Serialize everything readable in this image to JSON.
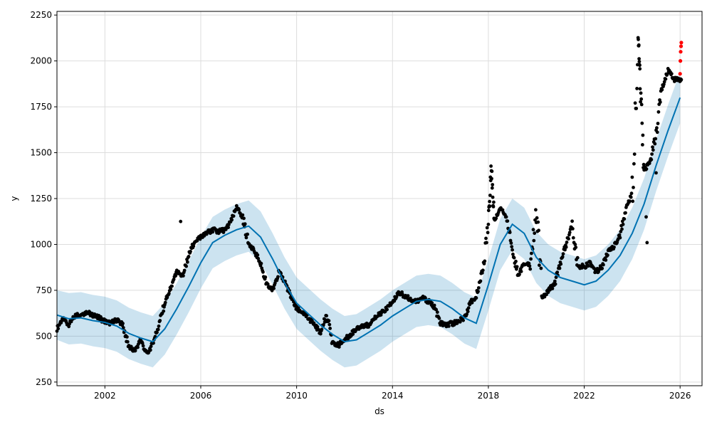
{
  "chart_data": {
    "type": "scatter",
    "title": "",
    "xlabel": "ds",
    "ylabel": "y",
    "x_is_date": true,
    "xlim": [
      "2000-01-01",
      "2026-12-01"
    ],
    "ylim": [
      230,
      2270
    ],
    "xticks": [
      "2002",
      "2006",
      "2010",
      "2014",
      "2018",
      "2022",
      "2026"
    ],
    "yticks": [
      "250",
      "500",
      "750",
      "1000",
      "1250",
      "1500",
      "1750",
      "2000",
      "2250"
    ],
    "grid": true,
    "colors": {
      "forecast_line": "#0072B2",
      "uncertainty_band": "#0072B2",
      "observed_points": "#000000",
      "highlight_points": "#ff0000",
      "grid": "#dddddd",
      "axes": "#000000"
    },
    "forecast": {
      "x": [
        "2000-01-01",
        "2000-07-01",
        "2001-01-01",
        "2001-07-01",
        "2002-01-01",
        "2002-07-01",
        "2003-01-01",
        "2003-07-01",
        "2004-01-01",
        "2004-07-01",
        "2005-01-01",
        "2005-07-01",
        "2006-01-01",
        "2006-07-01",
        "2007-01-01",
        "2007-07-01",
        "2008-01-01",
        "2008-07-01",
        "2009-01-01",
        "2009-07-01",
        "2010-01-01",
        "2010-07-01",
        "2011-01-01",
        "2011-07-01",
        "2012-01-01",
        "2012-07-01",
        "2013-01-01",
        "2013-07-01",
        "2014-01-01",
        "2014-07-01",
        "2015-01-01",
        "2015-07-01",
        "2016-01-01",
        "2016-07-01",
        "2017-01-01",
        "2017-07-01",
        "2018-01-01",
        "2018-07-01",
        "2019-01-01",
        "2019-07-01",
        "2020-01-01",
        "2020-07-01",
        "2021-01-01",
        "2021-07-01",
        "2022-01-01",
        "2022-07-01",
        "2023-01-01",
        "2023-07-01",
        "2024-01-01",
        "2024-07-01",
        "2025-01-01",
        "2025-07-01",
        "2026-01-01"
      ],
      "yhat": [
        615,
        595,
        600,
        585,
        575,
        555,
        515,
        490,
        470,
        540,
        650,
        770,
        900,
        1010,
        1050,
        1080,
        1100,
        1040,
        920,
        790,
        680,
        620,
        560,
        510,
        470,
        480,
        520,
        560,
        610,
        650,
        690,
        700,
        690,
        650,
        600,
        570,
        780,
        1000,
        1110,
        1060,
        930,
        860,
        820,
        800,
        780,
        800,
        860,
        940,
        1060,
        1220,
        1430,
        1620,
        1800
      ]
    },
    "band": {
      "x": [
        "2000-01-01",
        "2000-07-01",
        "2001-01-01",
        "2001-07-01",
        "2002-01-01",
        "2002-07-01",
        "2003-01-01",
        "2003-07-01",
        "2004-01-01",
        "2004-07-01",
        "2005-01-01",
        "2005-07-01",
        "2006-01-01",
        "2006-07-01",
        "2007-01-01",
        "2007-07-01",
        "2008-01-01",
        "2008-07-01",
        "2009-01-01",
        "2009-07-01",
        "2010-01-01",
        "2010-07-01",
        "2011-01-01",
        "2011-07-01",
        "2012-01-01",
        "2012-07-01",
        "2013-01-01",
        "2013-07-01",
        "2014-01-01",
        "2014-07-01",
        "2015-01-01",
        "2015-07-01",
        "2016-01-01",
        "2016-07-01",
        "2017-01-01",
        "2017-07-01",
        "2018-01-01",
        "2018-07-01",
        "2019-01-01",
        "2019-07-01",
        "2020-01-01",
        "2020-07-01",
        "2021-01-01",
        "2021-07-01",
        "2022-01-01",
        "2022-07-01",
        "2023-01-01",
        "2023-07-01",
        "2024-01-01",
        "2024-07-01",
        "2025-01-01",
        "2025-07-01",
        "2026-01-01"
      ],
      "lower": [
        480,
        455,
        460,
        445,
        435,
        415,
        375,
        350,
        330,
        400,
        510,
        630,
        760,
        870,
        910,
        940,
        960,
        900,
        780,
        650,
        540,
        480,
        420,
        370,
        330,
        340,
        380,
        420,
        470,
        510,
        550,
        560,
        550,
        510,
        460,
        430,
        640,
        860,
        970,
        920,
        790,
        720,
        680,
        660,
        640,
        660,
        720,
        800,
        920,
        1080,
        1290,
        1480,
        1660
      ],
      "upper": [
        750,
        735,
        740,
        725,
        715,
        695,
        655,
        630,
        610,
        680,
        790,
        910,
        1040,
        1150,
        1190,
        1220,
        1240,
        1180,
        1060,
        930,
        820,
        760,
        700,
        650,
        610,
        620,
        660,
        700,
        750,
        790,
        830,
        840,
        830,
        790,
        740,
        710,
        920,
        1140,
        1250,
        1200,
        1070,
        1000,
        960,
        940,
        920,
        940,
        1000,
        1080,
        1200,
        1360,
        1570,
        1760,
        1940
      ]
    },
    "observed": {
      "x": [
        "2000-01-01",
        "2000-04-01",
        "2000-07-01",
        "2000-10-01",
        "2001-01-01",
        "2001-04-01",
        "2001-07-01",
        "2001-10-01",
        "2002-01-01",
        "2002-04-01",
        "2002-07-01",
        "2002-10-01",
        "2003-01-01",
        "2003-04-01",
        "2003-07-01",
        "2003-10-01",
        "2004-01-01",
        "2004-04-01",
        "2004-07-01",
        "2004-10-01",
        "2005-01-01",
        "2005-04-01",
        "2005-07-01",
        "2005-10-01",
        "2006-01-01",
        "2006-04-01",
        "2006-07-01",
        "2006-10-01",
        "2007-01-01",
        "2007-04-01",
        "2007-07-01",
        "2007-10-01",
        "2008-01-01",
        "2008-04-01",
        "2008-07-01",
        "2008-10-01",
        "2009-01-01",
        "2009-04-01",
        "2009-07-01",
        "2009-10-01",
        "2010-01-01",
        "2010-04-01",
        "2010-07-01",
        "2010-10-01",
        "2011-01-01",
        "2011-04-01",
        "2011-07-01",
        "2011-10-01",
        "2012-01-01",
        "2012-04-01",
        "2012-07-01",
        "2012-10-01",
        "2013-01-01",
        "2013-04-01",
        "2013-07-01",
        "2013-10-01",
        "2014-01-01",
        "2014-04-01",
        "2014-07-01",
        "2014-10-01",
        "2015-01-01",
        "2015-04-01",
        "2015-07-01",
        "2015-10-01",
        "2016-01-01",
        "2016-04-01",
        "2016-07-01",
        "2016-10-01",
        "2017-01-01",
        "2017-04-01",
        "2017-07-01",
        "2017-10-01",
        "2018-01-01",
        "2018-02-15",
        "2018-04-01",
        "2018-07-01",
        "2018-10-01",
        "2019-01-01",
        "2019-04-01",
        "2019-07-01",
        "2019-10-01",
        "2020-01-01",
        "2020-04-01",
        "2020-07-01",
        "2020-10-01",
        "2021-01-01",
        "2021-04-01",
        "2021-07-01",
        "2021-10-01",
        "2022-01-01",
        "2022-04-01",
        "2022-07-01",
        "2022-10-01",
        "2023-01-01",
        "2023-04-01",
        "2023-07-01",
        "2023-10-01",
        "2024-01-01",
        "2024-04-01",
        "2024-05-01",
        "2024-07-01",
        "2024-10-01",
        "2025-01-01",
        "2025-04-01",
        "2025-07-01",
        "2025-10-01",
        "2025-12-01"
      ],
      "y": [
        540,
        600,
        560,
        610,
        620,
        630,
        615,
        600,
        580,
        570,
        590,
        560,
        440,
        420,
        480,
        400,
        460,
        560,
        680,
        760,
        850,
        830,
        940,
        1020,
        1040,
        1060,
        1080,
        1070,
        1080,
        1120,
        1200,
        1150,
        1000,
        960,
        900,
        780,
        750,
        850,
        800,
        720,
        650,
        630,
        600,
        560,
        520,
        620,
        470,
        450,
        480,
        510,
        540,
        560,
        560,
        600,
        620,
        650,
        680,
        740,
        720,
        700,
        690,
        710,
        690,
        660,
        570,
        560,
        570,
        580,
        600,
        680,
        720,
        850,
        1100,
        1420,
        1130,
        1200,
        1150,
        980,
        830,
        900,
        880,
        1200,
        700,
        750,
        780,
        900,
        1000,
        1100,
        880,
        880,
        900,
        850,
        880,
        960,
        990,
        1050,
        1200,
        1280,
        2150,
        1900,
        1400,
        1450,
        1600,
        1850,
        1950,
        1900,
        1900
      ],
      "outliers_x": [
        "2005-03-01",
        "2024-08-01",
        "2024-08-15",
        "2025-01-01"
      ],
      "outliers_y": [
        1125,
        1150,
        1010,
        1390
      ]
    },
    "highlighted": {
      "x": [
        "2026-01-01",
        "2026-01-05",
        "2026-01-10",
        "2026-01-15",
        "2026-01-20"
      ],
      "y": [
        1930,
        2000,
        2050,
        2080,
        2100
      ]
    }
  }
}
